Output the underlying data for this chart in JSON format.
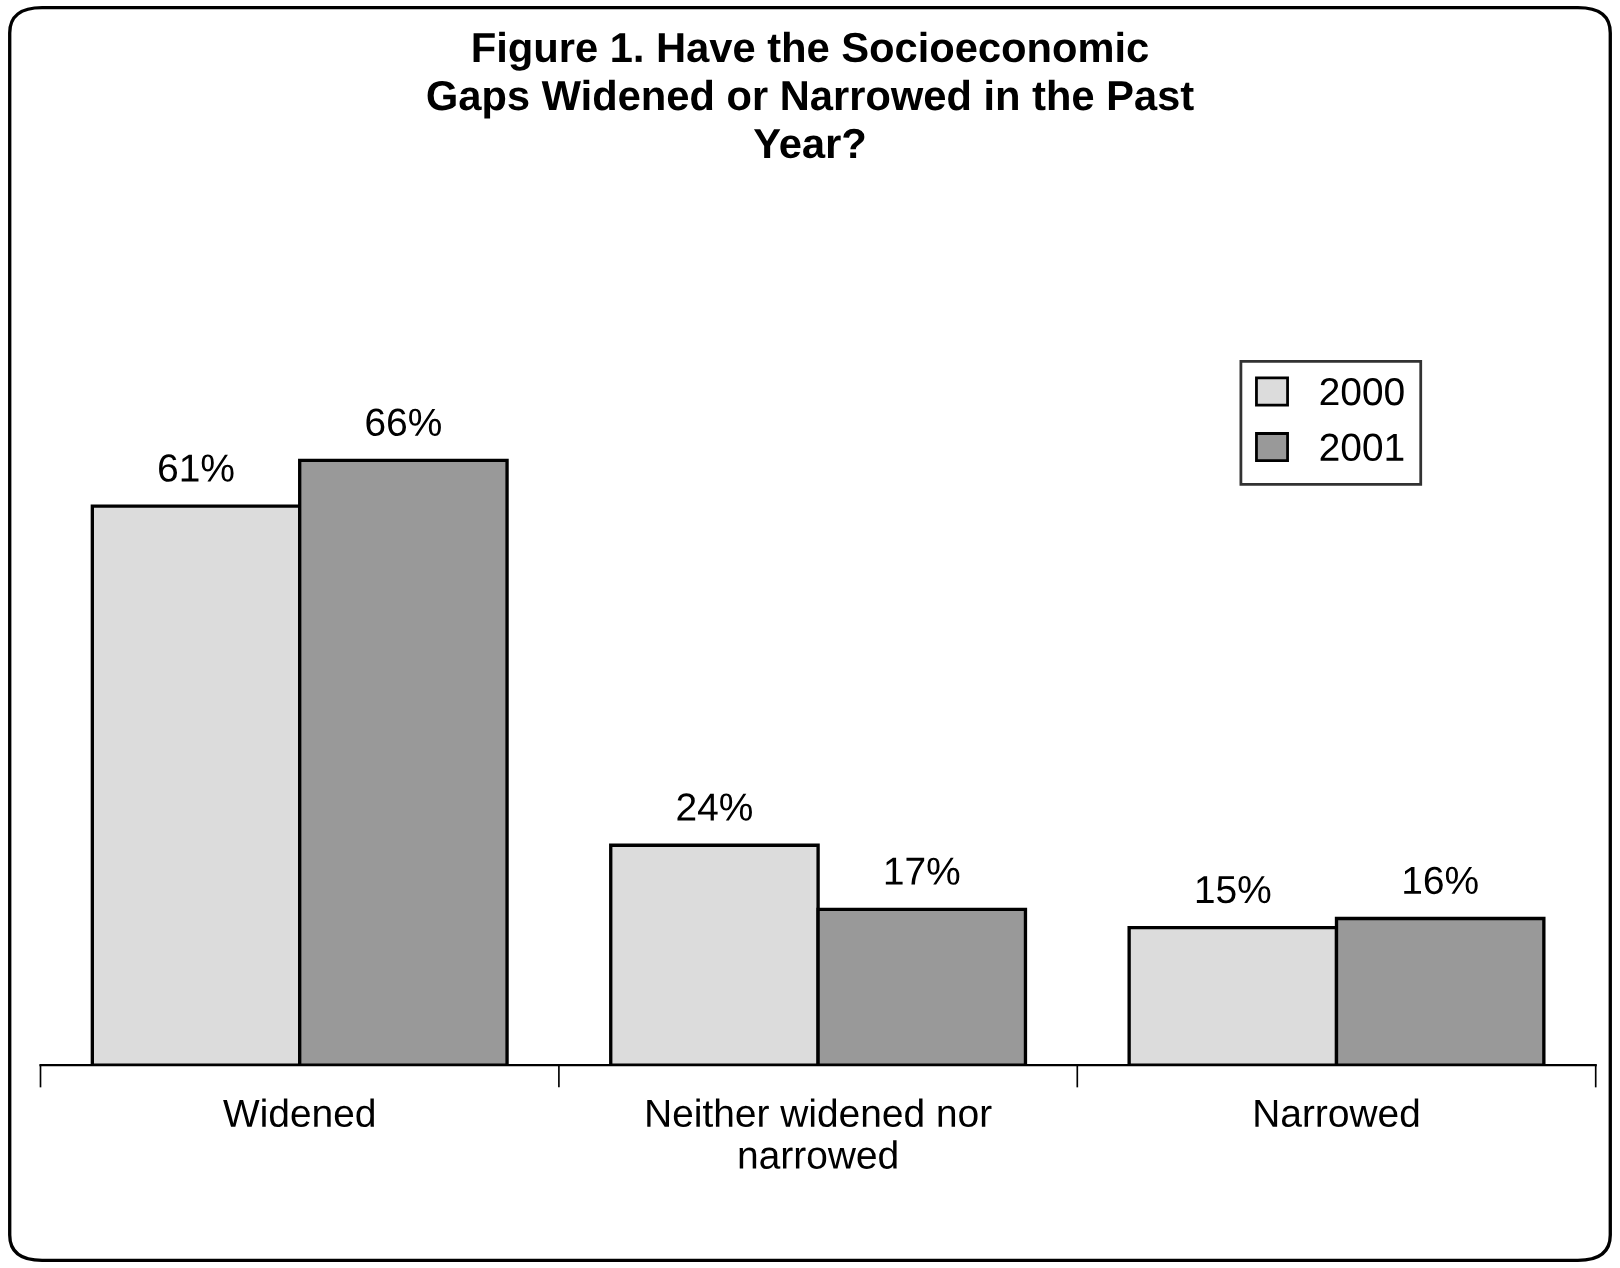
{
  "chart_data": {
    "type": "bar",
    "title": "Figure 1. Have the Socioeconomic\nGaps Widened or Narrowed in the Past\nYear?",
    "categories": [
      "Widened",
      "Neither widened nor\nnarrowed",
      "Narrowed"
    ],
    "series": [
      {
        "name": "2000",
        "color": "#dcdcdc",
        "values": [
          61,
          24,
          15
        ],
        "value_labels": [
          "61%",
          "24%",
          "15%"
        ]
      },
      {
        "name": "2001",
        "color": "#999999",
        "values": [
          66,
          17,
          16
        ],
        "value_labels": [
          "66%",
          "17%",
          "16%"
        ]
      }
    ],
    "legend": "top right",
    "grid": false,
    "tick_labels": "x"
  }
}
